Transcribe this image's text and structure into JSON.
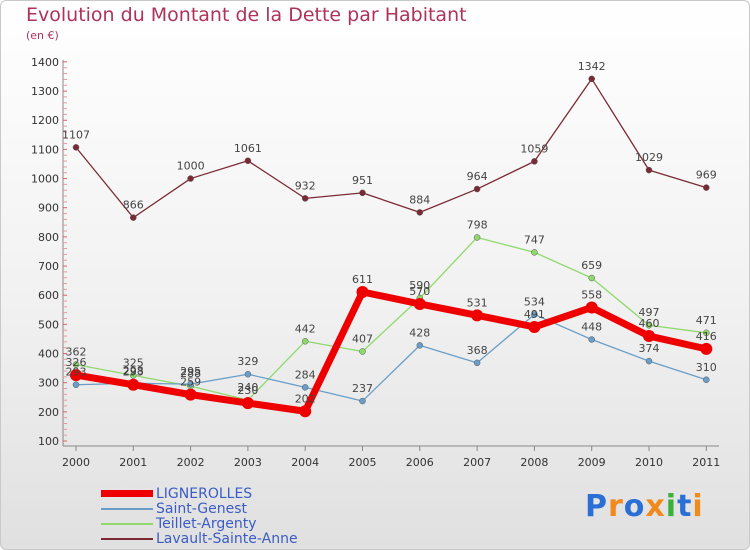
{
  "chart_data": {
    "type": "line",
    "title": "Evolution du Montant de la Dette par Habitant",
    "ylabel": "(en €)",
    "xlabel": "",
    "categories": [
      "2000",
      "2001",
      "2002",
      "2003",
      "2004",
      "2005",
      "2006",
      "2007",
      "2008",
      "2009",
      "2010",
      "2011"
    ],
    "yticks": [
      100,
      200,
      300,
      400,
      500,
      600,
      700,
      800,
      900,
      1000,
      1100,
      1200,
      1300,
      1400
    ],
    "ylim": [
      100,
      1400
    ],
    "grid": false,
    "legend_position": "bottom-left",
    "series": [
      {
        "name": "Lavault-Sainte-Anne",
        "color": "#7b2a35",
        "width": 1.3,
        "values": [
          1107,
          866,
          1000,
          1061,
          932,
          951,
          884,
          964,
          1059,
          1342,
          1029,
          969
        ]
      },
      {
        "name": "Teillet-Argenty",
        "color": "#8fd96c",
        "width": 1.3,
        "values": [
          362,
          325,
          288,
          240,
          442,
          407,
          590,
          798,
          747,
          659,
          497,
          471
        ]
      },
      {
        "name": "Saint-Genest",
        "color": "#6a9ec8",
        "width": 1.3,
        "values": [
          293,
          298,
          295,
          329,
          284,
          237,
          428,
          368,
          534,
          448,
          374,
          310
        ]
      },
      {
        "name": "LIGNEROLLES",
        "color": "#ee0000",
        "width": 7,
        "values": [
          326,
          293,
          259,
          230,
          202,
          611,
          570,
          531,
          491,
          558,
          460,
          416
        ]
      }
    ],
    "legend_order": [
      "LIGNEROLLES",
      "Saint-Genest",
      "Teillet-Argenty",
      "Lavault-Sainte-Anne"
    ]
  },
  "logo": {
    "letters": [
      "P",
      "r",
      "o",
      "x",
      "i",
      "t",
      "i"
    ],
    "colors": [
      "#2b6fd6",
      "#f08a1c",
      "#2b6fd6",
      "#f08a1c",
      "#3bb03b",
      "#2b6fd6",
      "#f08a1c"
    ]
  }
}
